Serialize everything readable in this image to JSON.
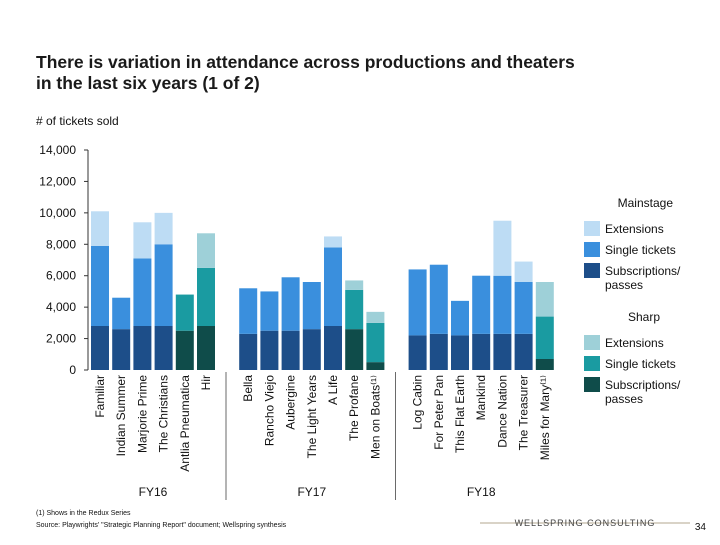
{
  "chart_data": {
    "type": "bar",
    "stacked": true,
    "title": "There is variation in attendance across productions and theaters in the last six years (1 of 2)",
    "y_axis_label": "# of tickets sold",
    "groups": [
      {
        "label": "FY16",
        "categories": [
          "Familiar",
          "Indian Summer",
          "Marjorie Prime",
          "The Christians",
          "Antlia Pneumatica",
          "Hir"
        ]
      },
      {
        "label": "FY17",
        "categories": [
          "Bella",
          "Rancho Viejo",
          "Aubergine",
          "The Light Years",
          "A Life",
          "The Profane",
          "Men on Boats⁽¹⁾"
        ]
      },
      {
        "label": "FY18",
        "categories": [
          "Log Cabin",
          "For Peter Pan",
          "This Flat Earth",
          "Mankind",
          "Dance Nation",
          "The Treasurer",
          "Miles for Mary⁽¹⁾"
        ]
      }
    ],
    "series_groups": [
      {
        "name": "Mainstage",
        "series": [
          {
            "name": "Extensions",
            "color": "#bddcf4",
            "values": [
              2200,
              null,
              2300,
              2000,
              null,
              null,
              null,
              null,
              null,
              null,
              700,
              null,
              null,
              null,
              null,
              null,
              null,
              3500,
              1300,
              null
            ]
          },
          {
            "name": "Single tickets",
            "color": "#3a8fdd",
            "values": [
              5100,
              2000,
              4300,
              5200,
              null,
              null,
              2900,
              2500,
              3400,
              3000,
              5000,
              null,
              null,
              4200,
              4400,
              2200,
              3700,
              3700,
              3300,
              null
            ]
          },
          {
            "name": "Subscriptions/ passes",
            "color": "#1d4e89",
            "values": [
              2800,
              2600,
              2800,
              2800,
              null,
              null,
              2300,
              2500,
              2500,
              2600,
              2800,
              null,
              null,
              2200,
              2300,
              2200,
              2300,
              2300,
              2300,
              null
            ]
          }
        ]
      },
      {
        "name": "Sharp",
        "series": [
          {
            "name": "Extensions",
            "color": "#9ed0d8",
            "values": [
              null,
              null,
              null,
              null,
              null,
              2200,
              null,
              null,
              null,
              null,
              null,
              600,
              700,
              null,
              null,
              null,
              null,
              null,
              null,
              2200
            ]
          },
          {
            "name": "Single tickets",
            "color": "#1a9ba1",
            "values": [
              null,
              null,
              null,
              null,
              2300,
              3700,
              null,
              null,
              null,
              null,
              null,
              2500,
              2500,
              null,
              null,
              null,
              null,
              null,
              null,
              2700
            ]
          },
          {
            "name": "Subscriptions/ passes",
            "color": "#0f4c4a",
            "values": [
              null,
              null,
              null,
              null,
              2500,
              2800,
              null,
              null,
              null,
              null,
              null,
              2600,
              500,
              null,
              null,
              null,
              null,
              null,
              null,
              700
            ]
          }
        ]
      }
    ],
    "ylim": [
      0,
      14000
    ],
    "yticks": [
      0,
      {
        "value": 2000,
        "label": "2,000"
      },
      {
        "value": 4000,
        "label": "4,000"
      },
      {
        "value": 6000,
        "label": "6,000"
      },
      {
        "value": 8000,
        "label": "8,000"
      },
      {
        "value": 10000,
        "label": "10,000"
      },
      {
        "value": 12000,
        "label": "12,000"
      },
      {
        "value": 14000,
        "label": "14,000"
      }
    ],
    "footnote": "(1) Shows in the Redux Series",
    "source": "Source: Playwrights' \"Strategic Planning Report\" document; Wellspring synthesis",
    "logo": "WELLSPRING CONSULTING",
    "page_number": "34"
  }
}
